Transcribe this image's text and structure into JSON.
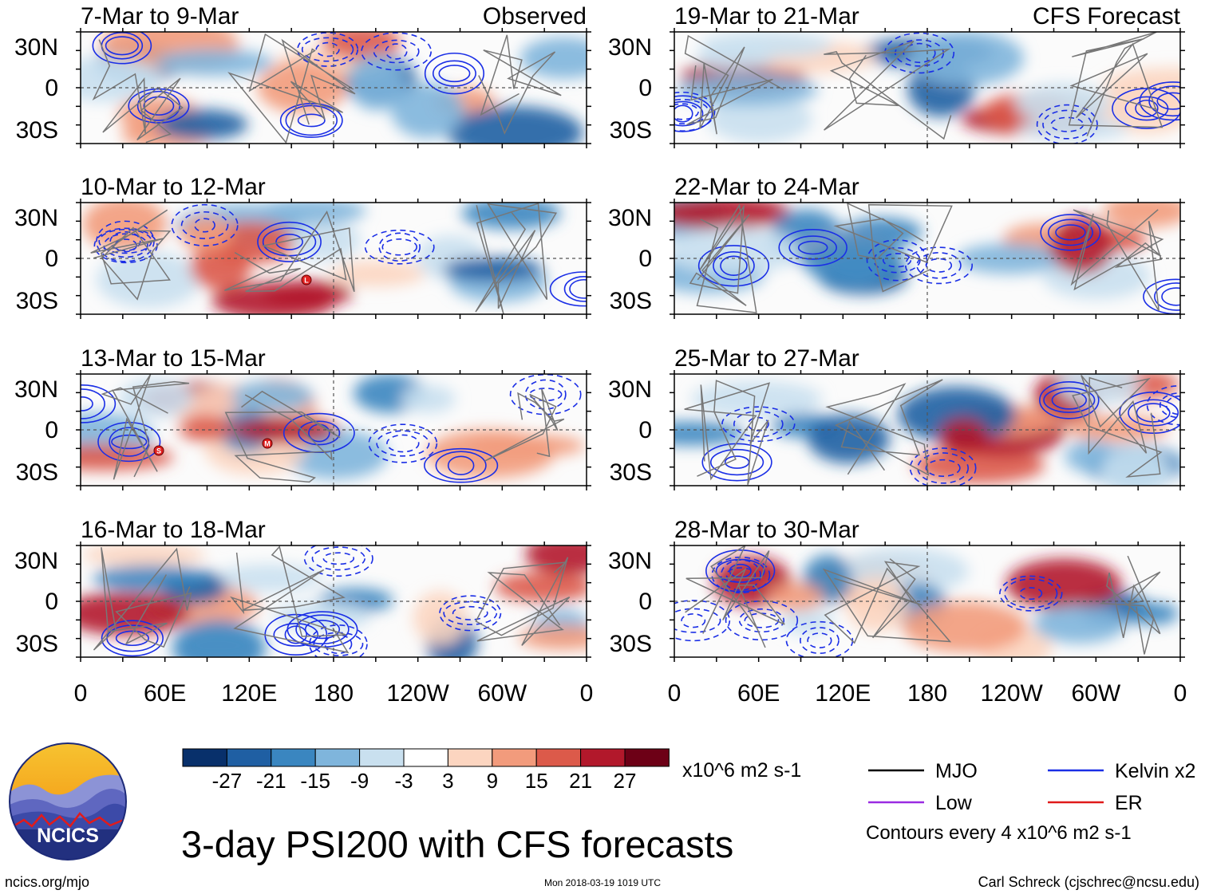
{
  "chart_data": {
    "type": "map",
    "title": "3-day PSI200 with CFS forecasts",
    "labels": {
      "observed": "Observed",
      "forecast": "CFS Forecast"
    },
    "y_ticks": [
      "30N",
      "0",
      "30S"
    ],
    "x_ticks": [
      "0",
      "60E",
      "120E",
      "180",
      "120W",
      "60W",
      "0"
    ],
    "panels": [
      {
        "period": "7-Mar to 9-Mar",
        "column": "observed"
      },
      {
        "period": "10-Mar to 12-Mar",
        "column": "observed"
      },
      {
        "period": "13-Mar to 15-Mar",
        "column": "observed"
      },
      {
        "period": "16-Mar to 18-Mar",
        "column": "observed"
      },
      {
        "period": "19-Mar to 21-Mar",
        "column": "forecast"
      },
      {
        "period": "22-Mar to 24-Mar",
        "column": "forecast"
      },
      {
        "period": "25-Mar to 27-Mar",
        "column": "forecast"
      },
      {
        "period": "28-Mar to 30-Mar",
        "column": "forecast"
      }
    ],
    "colorbar": {
      "labels": [
        "-27",
        "-21",
        "-15",
        "-9",
        "-3",
        "3",
        "9",
        "15",
        "21",
        "27"
      ],
      "colors": [
        "#08306b",
        "#1f5fa3",
        "#3a86c0",
        "#7fb5dc",
        "#c9e0ef",
        "#ffffff",
        "#fcd5c0",
        "#f29b7c",
        "#dc5a4a",
        "#b2182b",
        "#6d0016"
      ],
      "units": "x10^6 m2 s-1"
    },
    "legend": [
      {
        "label": "MJO",
        "color": "#000000"
      },
      {
        "label": "Kelvin x2",
        "color": "#1a2ee6"
      },
      {
        "label": "Low",
        "color": "#9a2be2"
      },
      {
        "label": "ER",
        "color": "#e01a1a"
      }
    ],
    "contour_note": "Contours every 4 x10^6 m2 s-1",
    "storm_markers": [
      {
        "panel": 1,
        "letter": "L"
      },
      {
        "panel": 2,
        "letter": "S"
      },
      {
        "panel": 2,
        "letter": "M"
      }
    ]
  },
  "footer": {
    "logo_text": "NCICS",
    "url": "ncics.org/mjo",
    "timestamp": "Mon 2018-03-19 1019 UTC",
    "credit": "Carl Schreck (cjschrec@ncsu.edu)"
  }
}
